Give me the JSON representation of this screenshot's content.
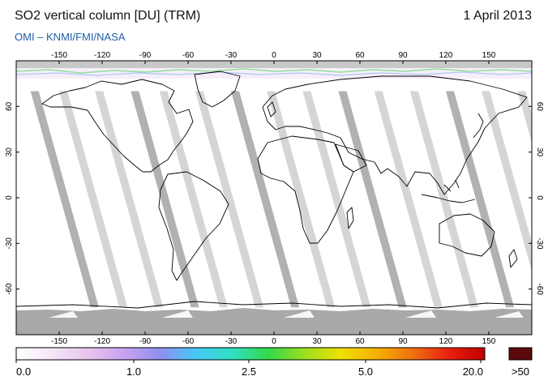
{
  "header": {
    "title": "SO2 vertical column [DU] (TRM)",
    "date": "1 April 2013",
    "credit": "OMI  –  KNMI/FMI/NASA"
  },
  "map": {
    "projection": "equirectangular",
    "lon_ticks": [
      "-150",
      "-120",
      "-90",
      "-60",
      "-30",
      "0",
      "30",
      "60",
      "90",
      "120",
      "150"
    ],
    "lat_ticks": [
      "60",
      "30",
      "0",
      "-30",
      "-60"
    ],
    "lon_range": [
      -180,
      180
    ],
    "lat_range": [
      -90,
      90
    ],
    "background": "#ffffff",
    "coastline_color": "#000000",
    "swath_gap_colors": [
      "#d0d0d0",
      "#a8a8a8"
    ],
    "no_data_color": "#aaaaaa"
  },
  "colorbar": {
    "labels": [
      "0.0",
      "1.0",
      "2.5",
      "5.0",
      "20.0"
    ],
    "overflow_label": ">50",
    "colors": [
      "#ffffff",
      "#f4e6f6",
      "#e8c4ef",
      "#c9a2f0",
      "#8f8ff0",
      "#46c9f5",
      "#30e0c0",
      "#33d84a",
      "#9ae020",
      "#f0e000",
      "#f5b000",
      "#f07010",
      "#e82010",
      "#c00000"
    ],
    "overflow_color": "#5a0a0a"
  }
}
